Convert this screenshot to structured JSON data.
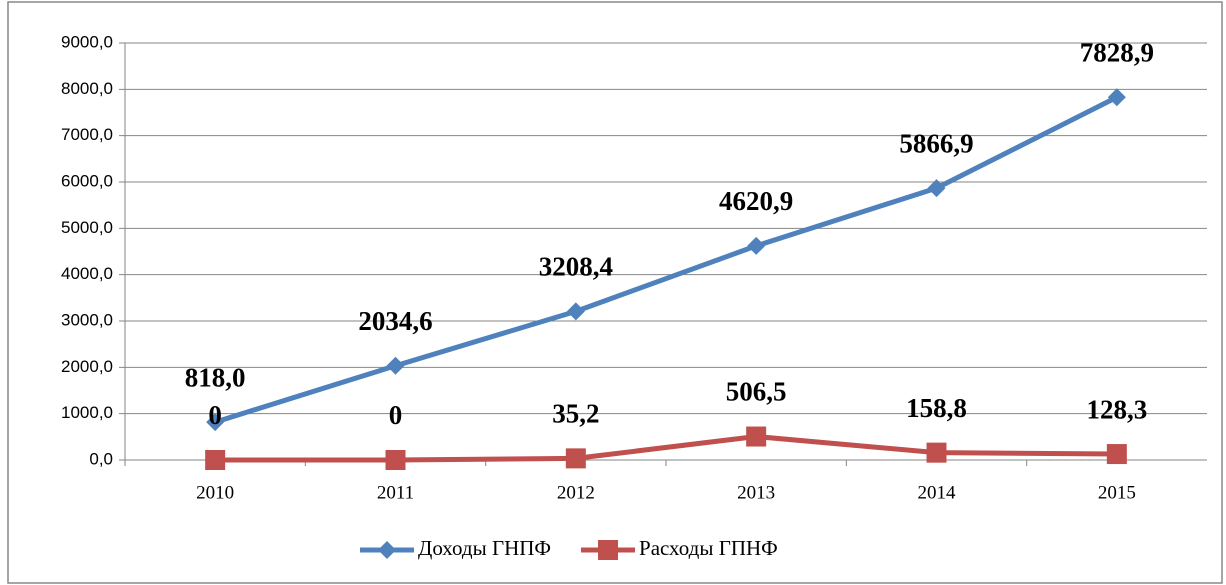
{
  "chart_data": {
    "type": "line",
    "categories": [
      "2010",
      "2011",
      "2012",
      "2013",
      "2014",
      "2015"
    ],
    "series": [
      {
        "name": "Доходы ГНПФ",
        "color": "#4f81bd",
        "marker": "diamond",
        "values": [
          818.0,
          2034.6,
          3208.4,
          4620.9,
          5866.9,
          7828.9
        ],
        "value_labels": [
          "818,0",
          "2034,6",
          "3208,4",
          "4620,9",
          "5866,9",
          "7828,9"
        ]
      },
      {
        "name": "Расходы ГПНФ",
        "color": "#c0504d",
        "marker": "square",
        "values": [
          0,
          0,
          35.2,
          506.5,
          158.8,
          128.3
        ],
        "value_labels": [
          "0",
          "0",
          "35,2",
          "506,5",
          "158,8",
          "128,3"
        ]
      }
    ],
    "ylim": [
      0,
      9000
    ],
    "yticks": [
      {
        "value": 0,
        "label": "0,0"
      },
      {
        "value": 1000,
        "label": "1000,0"
      },
      {
        "value": 2000,
        "label": "2000,0"
      },
      {
        "value": 3000,
        "label": "3000,0"
      },
      {
        "value": 4000,
        "label": "4000,0"
      },
      {
        "value": 5000,
        "label": "5000,0"
      },
      {
        "value": 6000,
        "label": "6000,0"
      },
      {
        "value": 7000,
        "label": "7000,0"
      },
      {
        "value": 8000,
        "label": "8000,0"
      },
      {
        "value": 9000,
        "label": "9000,0"
      }
    ],
    "grid": true,
    "legend": "bottom"
  }
}
